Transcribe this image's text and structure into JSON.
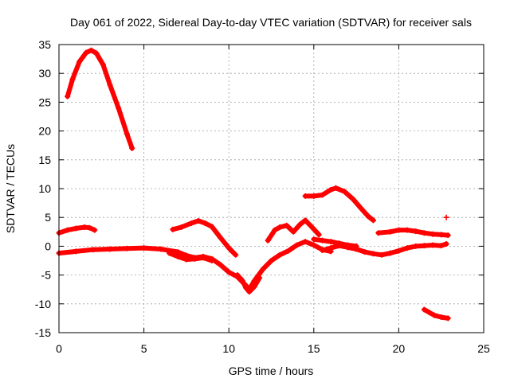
{
  "chart_data": {
    "type": "scatter",
    "title": "Day 061 of 2022, Sidereal Day-to-day VTEC variation (SDTVAR) for receiver sals",
    "xlabel": "GPS time / hours",
    "ylabel": "SDTVAR / TECUs",
    "xlim": [
      0,
      25
    ],
    "ylim": [
      -15,
      35
    ],
    "xticks": [
      "0",
      "5",
      "10",
      "15",
      "20",
      "25"
    ],
    "yticks": [
      "35",
      "30",
      "25",
      "20",
      "15",
      "10",
      "5",
      "0",
      "-5",
      "-10",
      "-15"
    ],
    "grid": true,
    "marker": "+",
    "color": "#ff0000",
    "series": [
      {
        "name": "arc-high",
        "points": [
          [
            0.5,
            26
          ],
          [
            0.8,
            29
          ],
          [
            1.2,
            32
          ],
          [
            1.6,
            33.6
          ],
          [
            1.9,
            34
          ],
          [
            2.2,
            33.5
          ],
          [
            2.6,
            31.5
          ],
          [
            3.0,
            28
          ],
          [
            3.5,
            24
          ],
          [
            4.0,
            19.5
          ],
          [
            4.3,
            17
          ]
        ]
      },
      {
        "name": "arc-low-left",
        "points": [
          [
            0.0,
            2.3
          ],
          [
            0.5,
            2.8
          ],
          [
            1.0,
            3.1
          ],
          [
            1.5,
            3.3
          ],
          [
            1.8,
            3.2
          ],
          [
            2.1,
            2.8
          ]
        ]
      },
      {
        "name": "arc-base-left",
        "points": [
          [
            0.0,
            -1.2
          ],
          [
            1.0,
            -0.9
          ],
          [
            2.0,
            -0.6
          ],
          [
            3.0,
            -0.5
          ],
          [
            4.0,
            -0.4
          ],
          [
            5.0,
            -0.3
          ],
          [
            6.0,
            -0.5
          ],
          [
            7.0,
            -1.0
          ],
          [
            7.5,
            -1.6
          ],
          [
            8.0,
            -2.0
          ],
          [
            8.5,
            -1.8
          ],
          [
            9.0,
            -2.2
          ],
          [
            9.5,
            -3.2
          ],
          [
            10.0,
            -4.5
          ],
          [
            10.5,
            -5.3
          ],
          [
            11.0,
            -6.8
          ],
          [
            11.2,
            -7.5
          ],
          [
            11.5,
            -6.0
          ],
          [
            12.0,
            -4.0
          ],
          [
            12.5,
            -2.5
          ],
          [
            13.0,
            -1.5
          ],
          [
            13.5,
            -0.8
          ],
          [
            14.0,
            0.2
          ],
          [
            14.5,
            0.8
          ],
          [
            15.0,
            0.2
          ],
          [
            15.5,
            -0.6
          ],
          [
            16.0,
            -0.9
          ]
        ]
      },
      {
        "name": "arc-base-middle",
        "points": [
          [
            6.5,
            -1.2
          ],
          [
            7.0,
            -1.8
          ],
          [
            7.5,
            -2.3
          ],
          [
            8.0,
            -2.2
          ],
          [
            8.5,
            -2.0
          ],
          [
            9.0,
            -2.5
          ]
        ]
      },
      {
        "name": "arc-rise-8h",
        "points": [
          [
            6.7,
            2.9
          ],
          [
            7.2,
            3.3
          ],
          [
            7.8,
            4.0
          ],
          [
            8.2,
            4.4
          ],
          [
            8.6,
            4.0
          ],
          [
            9.0,
            3.4
          ],
          [
            9.5,
            1.5
          ],
          [
            10.0,
            -0.3
          ],
          [
            10.4,
            -1.5
          ]
        ]
      },
      {
        "name": "arc-dip-11h",
        "points": [
          [
            10.5,
            -5.0
          ],
          [
            10.8,
            -6.0
          ],
          [
            11.0,
            -7.2
          ],
          [
            11.2,
            -7.9
          ],
          [
            11.5,
            -7.0
          ],
          [
            11.8,
            -5.5
          ]
        ]
      },
      {
        "name": "arc-bumps-13h",
        "points": [
          [
            12.3,
            1.0
          ],
          [
            12.7,
            2.8
          ],
          [
            13.0,
            3.3
          ],
          [
            13.4,
            3.6
          ],
          [
            13.8,
            2.5
          ],
          [
            14.2,
            3.8
          ],
          [
            14.5,
            4.5
          ],
          [
            14.8,
            3.6
          ],
          [
            15.3,
            2.0
          ]
        ]
      },
      {
        "name": "arc-mid-15h",
        "points": [
          [
            15.0,
            1.2
          ],
          [
            15.5,
            1.0
          ],
          [
            16.0,
            0.8
          ],
          [
            16.5,
            0.5
          ],
          [
            17.0,
            0.2
          ],
          [
            17.5,
            0.0
          ]
        ]
      },
      {
        "name": "arc-high-16h",
        "points": [
          [
            14.5,
            8.7
          ],
          [
            15.0,
            8.7
          ],
          [
            15.5,
            8.9
          ],
          [
            16.0,
            9.8
          ],
          [
            16.3,
            10.1
          ],
          [
            16.8,
            9.5
          ],
          [
            17.3,
            8.2
          ],
          [
            17.8,
            6.5
          ],
          [
            18.2,
            5.2
          ],
          [
            18.5,
            4.5
          ]
        ]
      },
      {
        "name": "arc-base-right",
        "points": [
          [
            15.5,
            -0.7
          ],
          [
            16.0,
            -0.3
          ],
          [
            16.5,
            0.1
          ],
          [
            17.0,
            -0.2
          ],
          [
            17.5,
            -0.5
          ],
          [
            18.0,
            -1.0
          ],
          [
            18.5,
            -1.3
          ],
          [
            19.0,
            -1.5
          ],
          [
            19.5,
            -1.2
          ],
          [
            20.0,
            -0.8
          ],
          [
            20.5,
            -0.3
          ],
          [
            21.0,
            0.0
          ],
          [
            21.5,
            0.1
          ],
          [
            22.0,
            0.2
          ],
          [
            22.5,
            0.1
          ],
          [
            22.8,
            0.4
          ]
        ]
      },
      {
        "name": "arc-right-2",
        "points": [
          [
            18.8,
            2.3
          ],
          [
            19.5,
            2.5
          ],
          [
            20.0,
            2.8
          ],
          [
            20.5,
            2.8
          ],
          [
            21.0,
            2.6
          ],
          [
            21.5,
            2.3
          ],
          [
            22.0,
            2.1
          ],
          [
            22.5,
            2.0
          ],
          [
            22.9,
            1.9
          ]
        ]
      },
      {
        "name": "arc-right-neg",
        "points": [
          [
            21.5,
            -11.0
          ],
          [
            21.8,
            -11.5
          ],
          [
            22.1,
            -12.0
          ],
          [
            22.5,
            -12.3
          ],
          [
            22.9,
            -12.5
          ]
        ]
      },
      {
        "name": "lone-point",
        "points": [
          [
            22.8,
            5.0
          ]
        ]
      }
    ]
  }
}
